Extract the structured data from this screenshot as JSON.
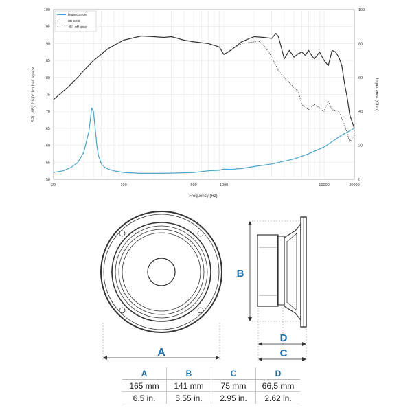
{
  "chart_data": {
    "type": "line",
    "xlabel": "Frequency (Hz)",
    "ylabel_left": "SPL (dB) 2.83V 1m half space",
    "ylabel_right": "Impedance (Ohm)",
    "x_scale": "log",
    "xlim": [
      20,
      20000
    ],
    "ylim_left": [
      50,
      100
    ],
    "ylim_right": [
      0,
      100
    ],
    "x_ticks": [
      20,
      100,
      500,
      1000,
      10000,
      20000
    ],
    "x_tick_labels": [
      "20",
      "100",
      "500",
      "1000",
      "10000",
      "20000"
    ],
    "y_left_ticks": [
      50,
      55,
      60,
      65,
      70,
      75,
      80,
      85,
      90,
      95,
      100
    ],
    "y_left_tick_labels": [
      "50",
      "55",
      "60",
      "65",
      "70",
      "75",
      "80",
      "85",
      "90",
      "95",
      "100"
    ],
    "y_right_ticks": [
      0,
      20,
      40,
      60,
      80,
      100
    ],
    "y_right_tick_labels": [
      "0",
      "20",
      "40",
      "60",
      "80",
      "100"
    ],
    "grid": true,
    "legend_position": "top-left",
    "series": [
      {
        "name": "Impedance",
        "axis": "right",
        "color": "#4aa3c8",
        "style": "solid",
        "x": [
          20,
          25,
          30,
          35,
          40,
          45,
          48,
          50,
          52,
          54,
          56,
          60,
          65,
          70,
          80,
          100,
          150,
          200,
          300,
          500,
          700,
          900,
          1000,
          1200,
          1500,
          2000,
          3000,
          5000,
          7000,
          10000,
          15000,
          20000
        ],
        "y": [
          4,
          5,
          7,
          10,
          16,
          28,
          42,
          40,
          30,
          20,
          14,
          9,
          7,
          6,
          5,
          4,
          3.5,
          3.5,
          3.6,
          4,
          5,
          5.3,
          6,
          5.8,
          6.3,
          7.5,
          9,
          12,
          15,
          19,
          26,
          30
        ]
      },
      {
        "name": "on axis",
        "axis": "left",
        "color": "#333333",
        "style": "solid",
        "x": [
          20,
          30,
          40,
          50,
          70,
          100,
          150,
          200,
          250,
          300,
          400,
          500,
          700,
          900,
          1000,
          1100,
          1300,
          1500,
          1800,
          2000,
          2500,
          3000,
          3300,
          3500,
          4000,
          4500,
          5000,
          5500,
          6000,
          6500,
          7000,
          7500,
          8000,
          9000,
          10000,
          11000,
          12000,
          13000,
          14000,
          15000,
          16000,
          17000,
          18000,
          20000
        ],
        "y": [
          73.5,
          78,
          82,
          85,
          88.5,
          91,
          92.2,
          92,
          91.8,
          92,
          91,
          90.5,
          90,
          89,
          86.8,
          87.5,
          89,
          90.5,
          91.5,
          92,
          91.8,
          91.5,
          93,
          92,
          85.5,
          88,
          86,
          87,
          87.5,
          86.5,
          88,
          86.5,
          85.5,
          87.5,
          85,
          83.5,
          88,
          87.5,
          86,
          83.5,
          78,
          74,
          69,
          65
        ]
      },
      {
        "name": "45° off axis",
        "axis": "left",
        "color": "#333333",
        "style": "dotted",
        "x": [
          1000,
          1100,
          1300,
          1500,
          1800,
          2000,
          2200,
          2500,
          2800,
          3000,
          3500,
          4000,
          4500,
          5000,
          5500,
          6000,
          7000,
          8000,
          9000,
          10000,
          11000,
          12000,
          14000,
          16000,
          18000,
          20000
        ],
        "y": [
          86.8,
          87.5,
          89,
          90,
          90.3,
          90.5,
          90.8,
          89.5,
          87.5,
          86,
          82,
          80,
          78.5,
          77,
          76,
          72,
          70.5,
          72,
          71,
          70,
          73,
          70.5,
          70,
          66,
          61,
          63
        ]
      }
    ],
    "legend": [
      "Impedance",
      "on axis",
      "45° off axis"
    ]
  },
  "dimensions": {
    "headers": [
      "A",
      "B",
      "C",
      "D"
    ],
    "rows": [
      [
        "165 mm",
        "141 mm",
        "75 mm",
        "66,5 mm"
      ],
      [
        "6.5 in.",
        "5.55 in.",
        "2.95 in.",
        "2.62 in."
      ]
    ],
    "labels": {
      "a": "A",
      "b": "B",
      "c": "C",
      "d": "D"
    }
  },
  "colors": {
    "accent": "#1f6fa8",
    "impedance": "#4aa3c8",
    "spl": "#333333"
  }
}
